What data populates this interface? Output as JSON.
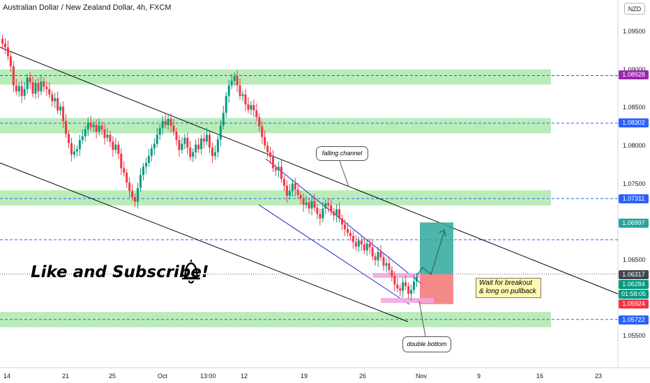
{
  "header": {
    "title": "Australian Dollar / New Zealand Dollar, 4h, FXCM",
    "currency": "NZD"
  },
  "price_scale": {
    "ticks": [
      "1.09500",
      "1.09000",
      "1.08500",
      "1.08000",
      "1.07500",
      "1.06500",
      "1.05500"
    ],
    "tags": [
      {
        "label": "1.08928",
        "bg": "#9c27b0",
        "fg": "#ffffff"
      },
      {
        "label": "1.08302",
        "bg": "#2962ff",
        "fg": "#ffffff"
      },
      {
        "label": "1.07311",
        "bg": "#2962ff",
        "fg": "#ffffff"
      },
      {
        "label": "1.06997",
        "bg": "#26a69a",
        "fg": "#ffffff"
      },
      {
        "label": "1.06317",
        "bg": "#434651",
        "fg": "#ffffff"
      },
      {
        "label": "1.06284",
        "bg": "#089981",
        "fg": "#ffffff"
      },
      {
        "label": "01:58:05",
        "bg": "#089981",
        "fg": "#ffffff"
      },
      {
        "label": "1.05924",
        "bg": "#f23645",
        "fg": "#ffffff"
      },
      {
        "label": "1.05722",
        "bg": "#2962ff",
        "fg": "#ffffff"
      }
    ]
  },
  "time_axis": {
    "ticks": [
      "14",
      "21",
      "25",
      "Oct",
      "13:00",
      "12",
      "19",
      "26",
      "Nov",
      "9",
      "16",
      "23"
    ]
  },
  "annotations": {
    "subscribe": "Like and Subscribe!",
    "falling_channel": "falling channel",
    "double_bottom": "double bottom",
    "wait_line1": "Wait for breakout",
    "wait_line2": "& long on pullback"
  },
  "colors": {
    "zone": "#b9ecb9",
    "bull": "#089981",
    "bear": "#f23645",
    "level_line": "#2962ff",
    "channel_inner": "#1d22d6",
    "target": "#2ea89c",
    "stop": "#f26b6b",
    "double_bottom_mark": "#f2a9e0"
  },
  "chart_data": {
    "type": "candlestick",
    "symbol": "AUDNZD",
    "timeframe": "4h",
    "ylim": [
      1.0525,
      1.0985
    ],
    "support_resistance_zones": [
      {
        "from": 1.0881,
        "to": 1.0901,
        "level": 1.08928
      },
      {
        "from": 1.0817,
        "to": 1.0837,
        "level": 1.08302
      },
      {
        "from": 1.0722,
        "to": 1.0742,
        "level": 1.07311
      },
      {
        "from": 1.0562,
        "to": 1.0582,
        "level": 1.05722
      }
    ],
    "horizontal_levels": [
      1.08928,
      1.08302,
      1.07311,
      1.0677,
      1.05722
    ],
    "current_price": 1.06284,
    "trade": {
      "entry": 1.06317,
      "target": 1.06997,
      "stop": 1.05924
    },
    "close_series": [
      1.0935,
      1.093,
      1.0918,
      1.0905,
      1.088,
      1.0872,
      1.0879,
      1.0866,
      1.0875,
      1.089,
      1.0884,
      1.0869,
      1.0883,
      1.0872,
      1.0885,
      1.0878,
      1.0875,
      1.0868,
      1.0859,
      1.0863,
      1.0847,
      1.0852,
      1.0833,
      1.0816,
      1.0804,
      1.0789,
      1.0793,
      1.0796,
      1.0808,
      1.0813,
      1.0822,
      1.0831,
      1.0825,
      1.0828,
      1.0819,
      1.0827,
      1.0822,
      1.0811,
      1.0815,
      1.0806,
      1.0795,
      1.0802,
      1.079,
      1.0771,
      1.0765,
      1.0752,
      1.0741,
      1.0733,
      1.0727,
      1.0745,
      1.0762,
      1.0773,
      1.0778,
      1.0787,
      1.0797,
      1.0803,
      1.0815,
      1.0824,
      1.0833,
      1.0828,
      1.0836,
      1.0827,
      1.0819,
      1.0808,
      1.0795,
      1.0803,
      1.0811,
      1.0798,
      1.0786,
      1.0792,
      1.0802,
      1.0796,
      1.081,
      1.0806,
      1.0815,
      1.0798,
      1.0787,
      1.0792,
      1.0809,
      1.0827,
      1.0844,
      1.0866,
      1.088,
      1.0886,
      1.0892,
      1.088,
      1.0866,
      1.0868,
      1.0855,
      1.0848,
      1.0854,
      1.0847,
      1.0838,
      1.0826,
      1.0812,
      1.0801,
      1.0792,
      1.0786,
      1.0771,
      1.0768,
      1.0773,
      1.0757,
      1.0748,
      1.0735,
      1.0741,
      1.0751,
      1.0743,
      1.0736,
      1.0731,
      1.0723,
      1.0726,
      1.0718,
      1.0728,
      1.0719,
      1.0711,
      1.0705,
      1.0718,
      1.0725,
      1.0722,
      1.0714,
      1.0709,
      1.0717,
      1.0705,
      1.0697,
      1.0691,
      1.0686,
      1.0682,
      1.0674,
      1.0668,
      1.0676,
      1.0671,
      1.0663,
      1.0672,
      1.0667,
      1.0655,
      1.065,
      1.0661,
      1.0654,
      1.0643,
      1.0646,
      1.0637,
      1.0629,
      1.0618,
      1.0613,
      1.061,
      1.0621,
      1.0616,
      1.0606,
      1.0611,
      1.0622,
      1.0628
    ],
    "series": [
      {
        "name": "AUDNZD",
        "values": "close_series"
      }
    ]
  }
}
